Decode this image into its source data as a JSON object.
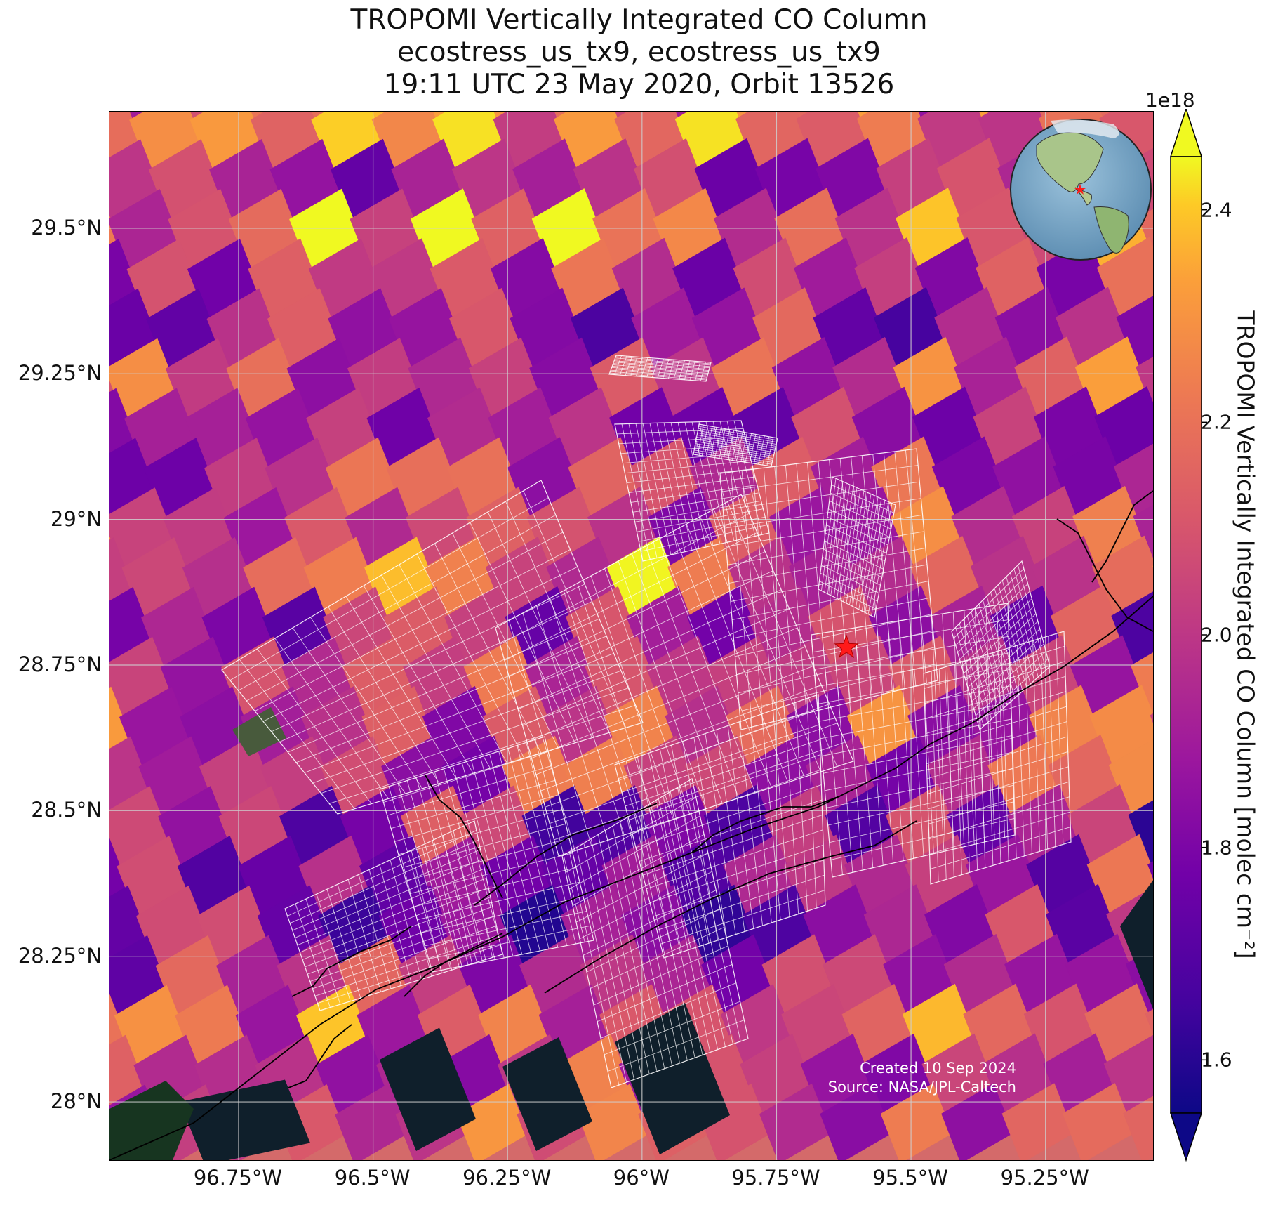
{
  "title": {
    "line1": "TROPOMI Vertically Integrated CO Column",
    "line2": "ecostress_us_tx9, ecostress_us_tx9",
    "line3": "19:11 UTC 23 May 2020, Orbit 13526"
  },
  "axes": {
    "lat_ticks": [
      "29.5°N",
      "29.25°N",
      "29°N",
      "28.75°N",
      "28.5°N",
      "28.25°N",
      "28°N"
    ],
    "lon_ticks": [
      "96.75°W",
      "96.5°W",
      "96.25°W",
      "96°W",
      "95.75°W",
      "95.5°W",
      "95.25°W"
    ],
    "lat_values": [
      29.5,
      29.25,
      29.0,
      28.75,
      28.5,
      28.25,
      28.0
    ],
    "lon_values": [
      -96.75,
      -96.5,
      -96.25,
      -96.0,
      -95.75,
      -95.5,
      -95.25
    ],
    "lon_range": [
      -96.99,
      -95.05
    ],
    "lat_range": [
      27.9,
      29.7
    ]
  },
  "colorbar": {
    "label": "TROPOMI Vertically Integrated CO Column [molec cm⁻²]",
    "exponent": "1e18",
    "ticks": [
      "1.6",
      "1.8",
      "2.0",
      "2.2",
      "2.4"
    ],
    "tick_values": [
      1.6,
      1.8,
      2.0,
      2.2,
      2.4
    ],
    "range": [
      1.55,
      2.45
    ],
    "colormap": "plasma",
    "extend": "both"
  },
  "marker": {
    "symbol": "star",
    "color": "#ff1a1a",
    "lon": -95.62,
    "lat": 28.78
  },
  "credits": {
    "created": "Created 10 Sep 2024",
    "source": "Source: NASA/JPL-Caltech"
  },
  "chart_data": {
    "type": "heatmap",
    "title": "TROPOMI Vertically Integrated CO Column",
    "xlabel": "",
    "ylabel": "",
    "colorbar_label": "TROPOMI Vertically Integrated CO Column [molec cm⁻²]",
    "value_range": [
      1.55e+18,
      2.45e+18
    ],
    "x_range": [
      -96.99,
      -95.05
    ],
    "y_range": [
      27.9,
      29.7
    ],
    "grid": true,
    "overlays": [
      "ECOSTRESS swath footprint (white grid)",
      "coastline",
      "site marker (red star)",
      "globe inset (top-right)"
    ]
  }
}
